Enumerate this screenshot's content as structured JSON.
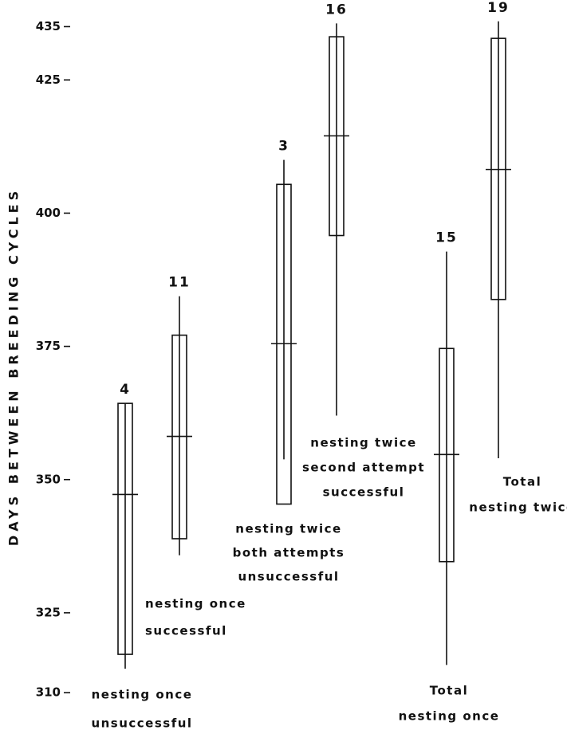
{
  "chart_data": {
    "type": "range",
    "ylabel": "DAYS BETWEEN BREEDING CYCLES",
    "ylim": [
      303,
      440
    ],
    "yticks": [
      310,
      325,
      350,
      375,
      400,
      425,
      435
    ],
    "color": "#111111",
    "groups": [
      {
        "label": [
          "nesting once",
          "unsuccessful"
        ],
        "n": 4,
        "min": 314.5,
        "max": 364.3,
        "low": 317.2,
        "high": 364.3,
        "mean": 347.2
      },
      {
        "label": [
          "nesting once",
          "successful"
        ],
        "n": 11,
        "min": 335.8,
        "max": 384.4,
        "low": 338.9,
        "high": 377.1,
        "mean": 358.1
      },
      {
        "label": [
          "nesting twice",
          "both attempts",
          "unsuccessful"
        ],
        "n": 3,
        "min": 353.8,
        "max": 410,
        "low": 345.4,
        "high": 405.4,
        "mean": 375.5
      },
      {
        "label": [
          "nesting twice",
          "second attempt",
          "successful"
        ],
        "n": 16,
        "min": 362,
        "max": 435.6,
        "low": 395.8,
        "high": 433.1,
        "mean": 414.5
      },
      {
        "label": [
          "Total",
          "nesting once"
        ],
        "n": 15,
        "min": 315.2,
        "max": 392.8,
        "low": 334.6,
        "high": 374.6,
        "mean": 354.7
      },
      {
        "label": [
          "Total",
          "nesting twice"
        ],
        "n": 19,
        "min": 354,
        "max": 436,
        "low": 383.8,
        "high": 432.8,
        "mean": 408.2
      }
    ]
  }
}
